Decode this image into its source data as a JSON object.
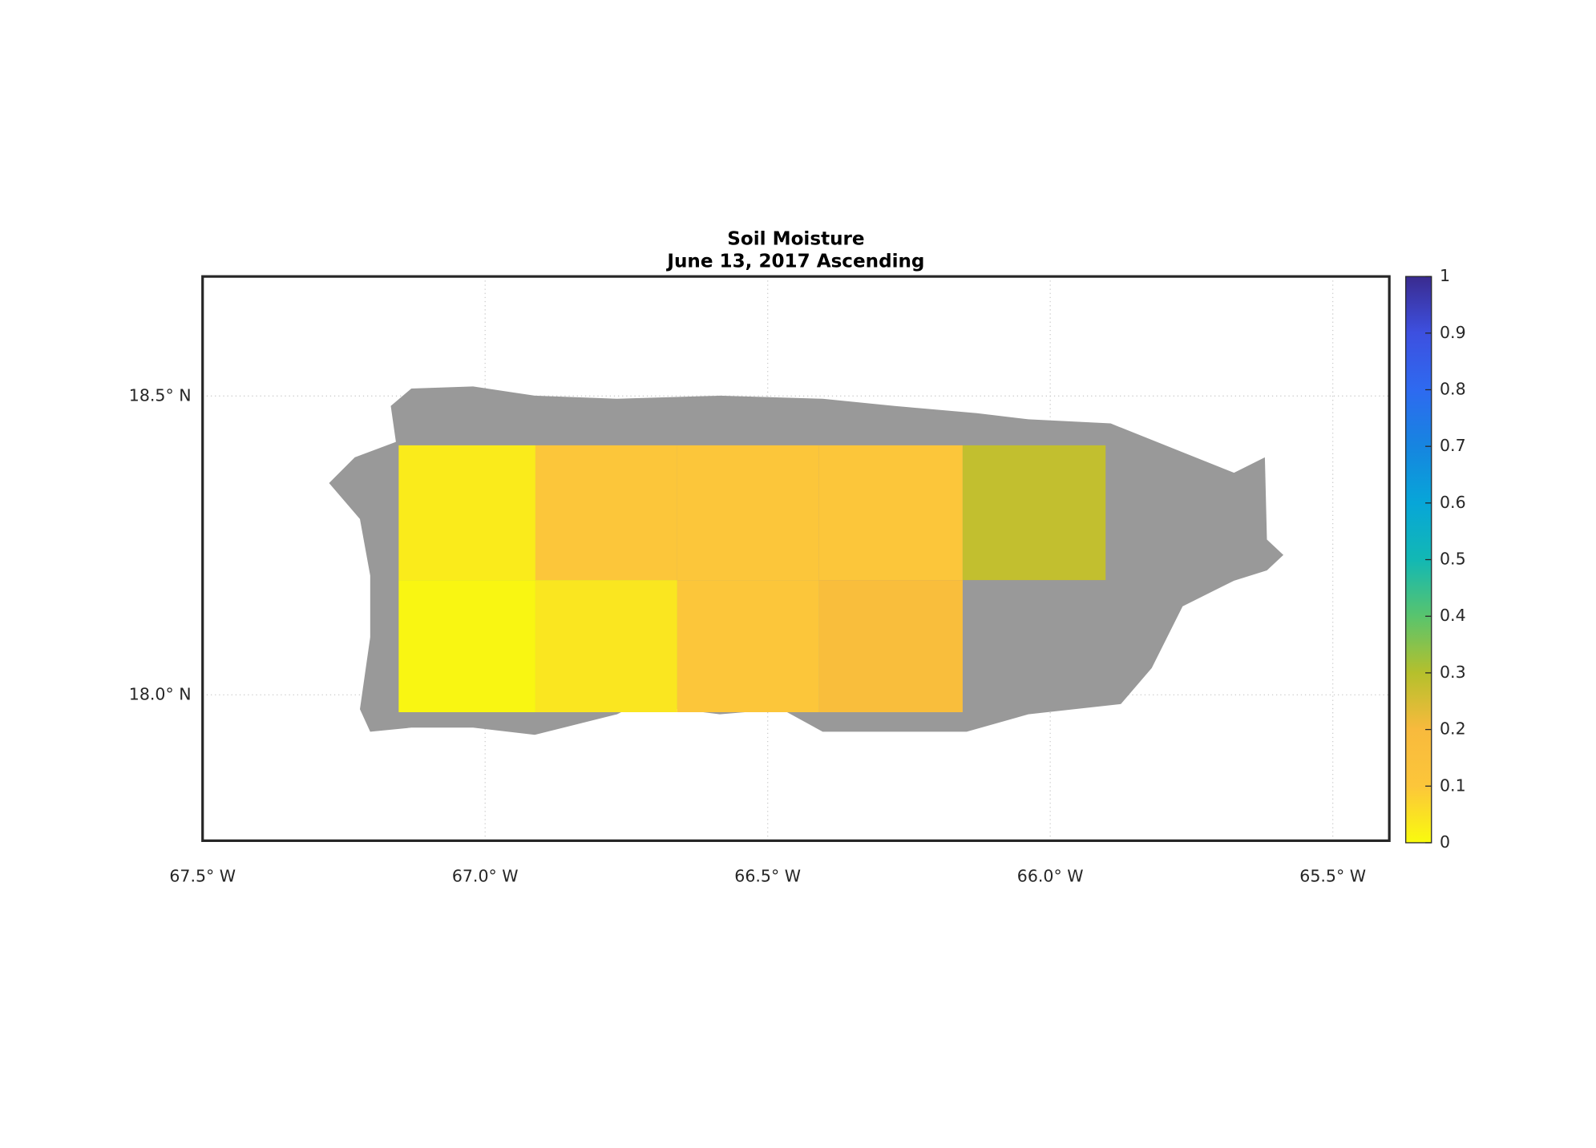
{
  "chart_data": {
    "type": "gridmap",
    "title": "Soil Moisture",
    "subtitle": "June 13, 2017 Ascending",
    "xlim": [
      -67.5,
      -65.4
    ],
    "ylim": [
      17.756,
      18.7
    ],
    "xticks": [
      {
        "value": -67.5,
        "label": "67.5° W"
      },
      {
        "value": -67.0,
        "label": "67.0° W"
      },
      {
        "value": -66.5,
        "label": "66.5° W"
      },
      {
        "value": -66.0,
        "label": "66.0° W"
      },
      {
        "value": -65.5,
        "label": "65.5° W"
      }
    ],
    "yticks": [
      {
        "value": 18.0,
        "label": "18.0° N"
      },
      {
        "value": 18.5,
        "label": "18.5° N"
      }
    ],
    "grid": true,
    "land_color": "#999999",
    "clim": [
      0,
      1
    ],
    "cticks": [
      0,
      0.1,
      0.2,
      0.3,
      0.4,
      0.5,
      0.6,
      0.7,
      0.8,
      0.9,
      1
    ],
    "colormap": [
      "#f9fb0e",
      "#fcc63a",
      "#f8ba3d",
      "#b5c02c",
      "#59c46d",
      "#12b8b4",
      "#07a6d8",
      "#1685e0",
      "#2e6af0",
      "#3d50e0",
      "#3a2b8f"
    ],
    "cells": [
      {
        "lon": [
          -67.153,
          -66.911
        ],
        "lat": [
          18.192,
          18.4175
        ],
        "value": 0.03
      },
      {
        "lon": [
          -66.911,
          -66.66
        ],
        "lat": [
          18.192,
          18.4175
        ],
        "value": 0.1
      },
      {
        "lon": [
          -66.66,
          -66.409
        ],
        "lat": [
          18.192,
          18.4175
        ],
        "value": 0.1
      },
      {
        "lon": [
          -66.409,
          -66.155
        ],
        "lat": [
          18.192,
          18.4175
        ],
        "value": 0.1
      },
      {
        "lon": [
          -66.155,
          -65.902
        ],
        "lat": [
          18.192,
          18.4175
        ],
        "value": 0.28
      },
      {
        "lon": [
          -67.153,
          -66.911
        ],
        "lat": [
          17.971,
          18.192
        ],
        "value": 0.01
      },
      {
        "lon": [
          -66.911,
          -66.66
        ],
        "lat": [
          17.971,
          18.192
        ],
        "value": 0.04
      },
      {
        "lon": [
          -66.66,
          -66.409
        ],
        "lat": [
          17.971,
          18.192
        ],
        "value": 0.1
      },
      {
        "lon": [
          -66.409,
          -66.155
        ],
        "lat": [
          17.971,
          18.192
        ],
        "value": 0.17
      }
    ]
  }
}
